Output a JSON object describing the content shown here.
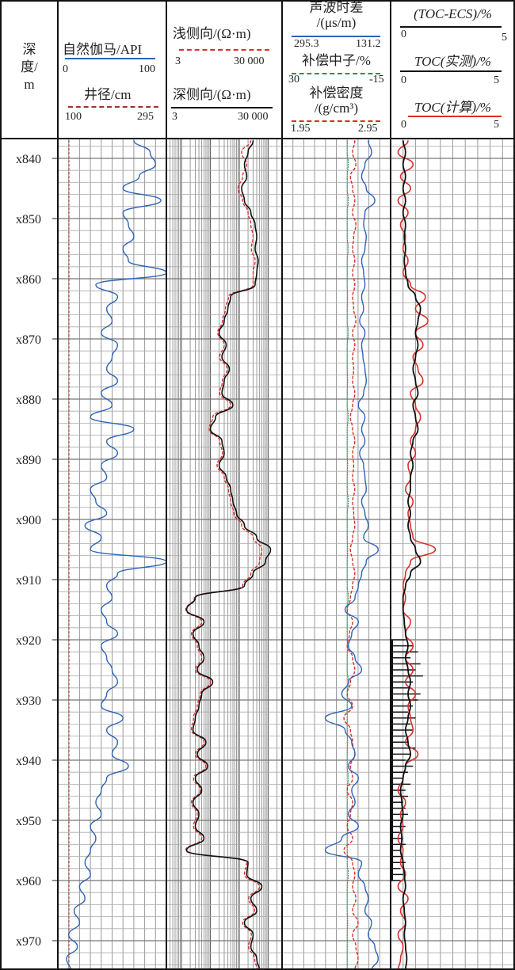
{
  "header": {
    "depth": {
      "l1": "深",
      "l2": "度",
      "l3": "/m"
    },
    "gr": {
      "label": "自然伽马/API",
      "min": "0",
      "max": "100",
      "color": "#2e63b8"
    },
    "cal": {
      "label": "井径/cm",
      "min": "100",
      "max": "295",
      "color": "#a0302a"
    },
    "lls": {
      "label": "浅侧向/(Ω·m)",
      "min": "3",
      "max": "30 000",
      "color": "#d6302a"
    },
    "lld": {
      "label": "深侧向/(Ω·m)",
      "min": "3",
      "max": "30 000",
      "color": "#111111"
    },
    "ac": {
      "l1": "声波时差",
      "l2": "/(μs/m)",
      "min": "295.3",
      "max": "131.2",
      "color": "#2e63b8"
    },
    "cnl": {
      "label": "补偿中子/%",
      "min": "30",
      "max": "-15",
      "color": "#2f8f4e"
    },
    "den": {
      "l1": "补偿密度",
      "l2": "/(g/cm³)",
      "min": "1.95",
      "max": "2.95",
      "color": "#d6302a"
    },
    "toc_ecs": {
      "label": "(TOC-ECS)/%",
      "min": "0",
      "max": "5",
      "color": "#111111"
    },
    "toc_meas": {
      "label": "TOC(实测)/%",
      "min": "0",
      "max": "5",
      "color": "#111111"
    },
    "toc_calc": {
      "label": "TOC(计算)/%",
      "min": "0",
      "max": "5",
      "color": "#d6302a"
    }
  },
  "chart_data": {
    "type": "line",
    "title": "",
    "ylabel": "深度/m",
    "depth_range": [
      836.7,
      975
    ],
    "depth_ticks": [
      "x840",
      "x850",
      "x860",
      "x870",
      "x880",
      "x890",
      "x900",
      "x910",
      "x920",
      "x930",
      "x940",
      "x950",
      "x960",
      "x970"
    ],
    "depth_tick_values": [
      840,
      850,
      860,
      870,
      880,
      890,
      900,
      910,
      920,
      930,
      940,
      950,
      960,
      970
    ],
    "sample_start": 837,
    "sample_step": 2,
    "series": {
      "gr": {
        "range": [
          0,
          100
        ],
        "values": [
          70,
          85,
          90,
          75,
          60,
          95,
          60,
          65,
          70,
          60,
          65,
          100,
          35,
          55,
          45,
          50,
          40,
          55,
          50,
          45,
          55,
          40,
          50,
          30,
          70,
          45,
          55,
          40,
          45,
          30,
          35,
          45,
          25,
          40,
          30,
          100,
          55,
          45,
          50,
          40,
          45,
          55,
          40,
          45,
          50,
          55,
          45,
          40,
          60,
          45,
          55,
          50,
          65,
          45,
          40,
          35,
          40,
          30,
          35,
          30,
          25,
          30,
          20,
          25,
          15,
          20,
          10,
          18,
          8,
          12
        ]
      },
      "cal": {
        "range": [
          100,
          295
        ],
        "values": [
          120,
          120,
          120,
          120,
          120,
          120,
          120,
          120,
          120,
          120,
          120,
          120,
          120,
          120,
          120,
          120,
          120,
          120,
          120,
          120,
          120,
          120,
          120,
          120,
          120,
          120,
          120,
          120,
          120,
          120,
          120,
          120,
          120,
          120,
          120,
          120,
          120,
          120,
          120,
          120,
          120,
          120,
          120,
          120,
          120,
          120,
          120,
          120,
          120,
          120,
          120,
          120,
          120,
          120,
          120,
          120,
          120,
          120,
          120,
          120,
          120,
          120,
          120,
          120,
          120,
          120,
          120,
          120,
          120,
          120
        ]
      },
      "lld": {
        "range": [
          3,
          30000
        ],
        "log": true,
        "values": [
          3000,
          2000,
          1500,
          1800,
          1200,
          1500,
          2500,
          3500,
          4000,
          3500,
          4500,
          4000,
          3500,
          500,
          400,
          300,
          200,
          350,
          250,
          450,
          300,
          250,
          600,
          150,
          100,
          250,
          300,
          200,
          350,
          500,
          600,
          800,
          1500,
          4000,
          12000,
          8000,
          3000,
          1500,
          30,
          15,
          60,
          25,
          40,
          60,
          35,
          120,
          50,
          40,
          30,
          25,
          70,
          35,
          80,
          30,
          50,
          25,
          40,
          30,
          60,
          15,
          2000,
          1800,
          6000,
          2500,
          4000,
          1500,
          3000,
          2500,
          4000,
          5000
        ]
      },
      "lls": {
        "range": [
          3,
          30000
        ],
        "log": true,
        "values": [
          2500,
          1200,
          1800,
          1300,
          900,
          1300,
          2000,
          2500,
          3000,
          2600,
          3500,
          3000,
          3000,
          420,
          330,
          260,
          180,
          300,
          210,
          380,
          260,
          210,
          500,
          120,
          90,
          210,
          260,
          170,
          300,
          420,
          500,
          650,
          1200,
          3000,
          6000,
          5000,
          2500,
          1300,
          28,
          14,
          50,
          22,
          35,
          50,
          30,
          100,
          45,
          35,
          26,
          22,
          60,
          30,
          70,
          26,
          45,
          22,
          35,
          26,
          50,
          14,
          1800,
          1500,
          5000,
          2100,
          3400,
          1300,
          2600,
          2100,
          3400,
          4200
        ]
      },
      "ac": {
        "range": [
          295.3,
          131.2
        ],
        "values": [
          165,
          160,
          170,
          175,
          168,
          155,
          170,
          172,
          168,
          170,
          175,
          172,
          170,
          175,
          172,
          178,
          170,
          175,
          173,
          170,
          168,
          172,
          180,
          170,
          175,
          170,
          178,
          172,
          170,
          168,
          175,
          170,
          165,
          172,
          150,
          168,
          175,
          180,
          185,
          200,
          180,
          190,
          195,
          185,
          175,
          195,
          205,
          190,
          230,
          200,
          190,
          185,
          195,
          180,
          190,
          185,
          195,
          180,
          205,
          230,
          175,
          180,
          170,
          165,
          170,
          160,
          165,
          155,
          150,
          160
        ]
      },
      "cnl": {
        "range": [
          30,
          -15
        ],
        "values": [
          3,
          3,
          2.5,
          3,
          3,
          2.5,
          3,
          3,
          3,
          2.5,
          3,
          3,
          3,
          2.8,
          3,
          3,
          2.5,
          3,
          3,
          3,
          2.8,
          3,
          3,
          2.5,
          3,
          3,
          3,
          2.8,
          3,
          3,
          2.5,
          3,
          3,
          3,
          2.8,
          3,
          3,
          3,
          2.5,
          3,
          3,
          3,
          2.8,
          3,
          3,
          2.5,
          3,
          3,
          3,
          3,
          2.8,
          3,
          3,
          2.5,
          3,
          3,
          3,
          2.8,
          3,
          3,
          3,
          2.5,
          3,
          3,
          3,
          2.8,
          3,
          3,
          3,
          3
        ]
      },
      "den": {
        "range": [
          1.95,
          2.95
        ],
        "values": [
          2.62,
          2.6,
          2.63,
          2.58,
          2.6,
          2.62,
          2.6,
          2.63,
          2.61,
          2.6,
          2.62,
          2.6,
          2.62,
          2.6,
          2.61,
          2.63,
          2.6,
          2.62,
          2.6,
          2.61,
          2.6,
          2.62,
          2.6,
          2.58,
          2.6,
          2.62,
          2.6,
          2.61,
          2.6,
          2.62,
          2.6,
          2.61,
          2.62,
          2.6,
          2.58,
          2.6,
          2.62,
          2.6,
          2.58,
          2.55,
          2.6,
          2.57,
          2.55,
          2.6,
          2.62,
          2.58,
          2.55,
          2.6,
          2.52,
          2.58,
          2.6,
          2.62,
          2.58,
          2.6,
          2.55,
          2.6,
          2.58,
          2.55,
          2.6,
          2.52,
          2.6,
          2.62,
          2.6,
          2.63,
          2.6,
          2.65,
          2.6,
          2.63,
          2.65,
          2.62
        ]
      },
      "toc_ecs": {
        "range": [
          0,
          5
        ],
        "values": [
          0.5,
          0.6,
          0.5,
          0.6,
          0.5,
          0.6,
          0.5,
          0.6,
          0.55,
          0.6,
          0.55,
          0.6,
          0.7,
          1.0,
          1.2,
          1.1,
          1.0,
          1.1,
          1.0,
          0.9,
          1.0,
          1.1,
          0.9,
          1.0,
          1.1,
          0.9,
          0.8,
          0.9,
          0.8,
          0.8,
          0.7,
          0.8,
          0.7,
          0.8,
          1.0,
          1.2,
          0.8,
          0.6,
          0.5,
          0.5,
          0.55,
          0.6,
          0.7,
          0.6,
          0.7,
          0.8,
          0.7,
          0.8,
          0.7,
          0.6,
          0.7,
          0.8,
          0.6,
          0.5,
          0.4,
          0.45,
          0.5,
          0.4,
          0.45,
          0.4,
          0.5,
          0.55,
          0.6,
          0.5,
          0.55,
          0.6,
          0.55,
          0.6,
          0.65,
          0.6
        ]
      },
      "toc_calc": {
        "range": [
          0,
          5
        ],
        "values": [
          0.7,
          0.3,
          0.9,
          0.4,
          0.8,
          0.3,
          0.7,
          0.4,
          0.6,
          0.5,
          0.7,
          0.5,
          0.8,
          1.4,
          1.0,
          1.5,
          1.0,
          1.3,
          0.9,
          1.1,
          1.3,
          0.8,
          1.0,
          1.2,
          1.0,
          0.8,
          1.0,
          0.7,
          0.8,
          0.6,
          0.9,
          0.7,
          0.8,
          0.9,
          1.8,
          0.8,
          0.6,
          0.5,
          0.6,
          0.5,
          0.8,
          0.6,
          0.9,
          0.6,
          0.9,
          0.6,
          1.0,
          0.7,
          0.8,
          0.9,
          0.6,
          1.1,
          0.6,
          0.5,
          0.3,
          0.6,
          0.4,
          0.5,
          0.3,
          0.5,
          0.4,
          0.6,
          0.3,
          0.7,
          0.4,
          0.6,
          0.3,
          0.5,
          0.4,
          0.3
        ]
      },
      "toc_meas": {
        "range": [
          0,
          5
        ],
        "depths": [
          920,
          921,
          922,
          923,
          924,
          925,
          926,
          927,
          928,
          929,
          930,
          931,
          932,
          933,
          934,
          935,
          936,
          937,
          938,
          939,
          940,
          941,
          942,
          943,
          944,
          945,
          946,
          947,
          948,
          949,
          950,
          951,
          952,
          953,
          954,
          955,
          956,
          957,
          958,
          959,
          960
        ],
        "values": [
          0.6,
          0.9,
          1.1,
          0.8,
          1.2,
          1.0,
          1.3,
          0.9,
          0.8,
          1.2,
          1.1,
          0.9,
          0.7,
          1.0,
          0.8,
          0.9,
          0.6,
          0.7,
          1.0,
          0.8,
          0.6,
          0.9,
          0.7,
          0.5,
          0.8,
          0.6,
          0.7,
          0.5,
          0.6,
          0.7,
          0.5,
          0.6,
          0.4,
          0.5,
          0.6,
          0.4,
          0.5,
          0.6,
          0.4,
          0.5,
          0.4
        ]
      }
    }
  }
}
